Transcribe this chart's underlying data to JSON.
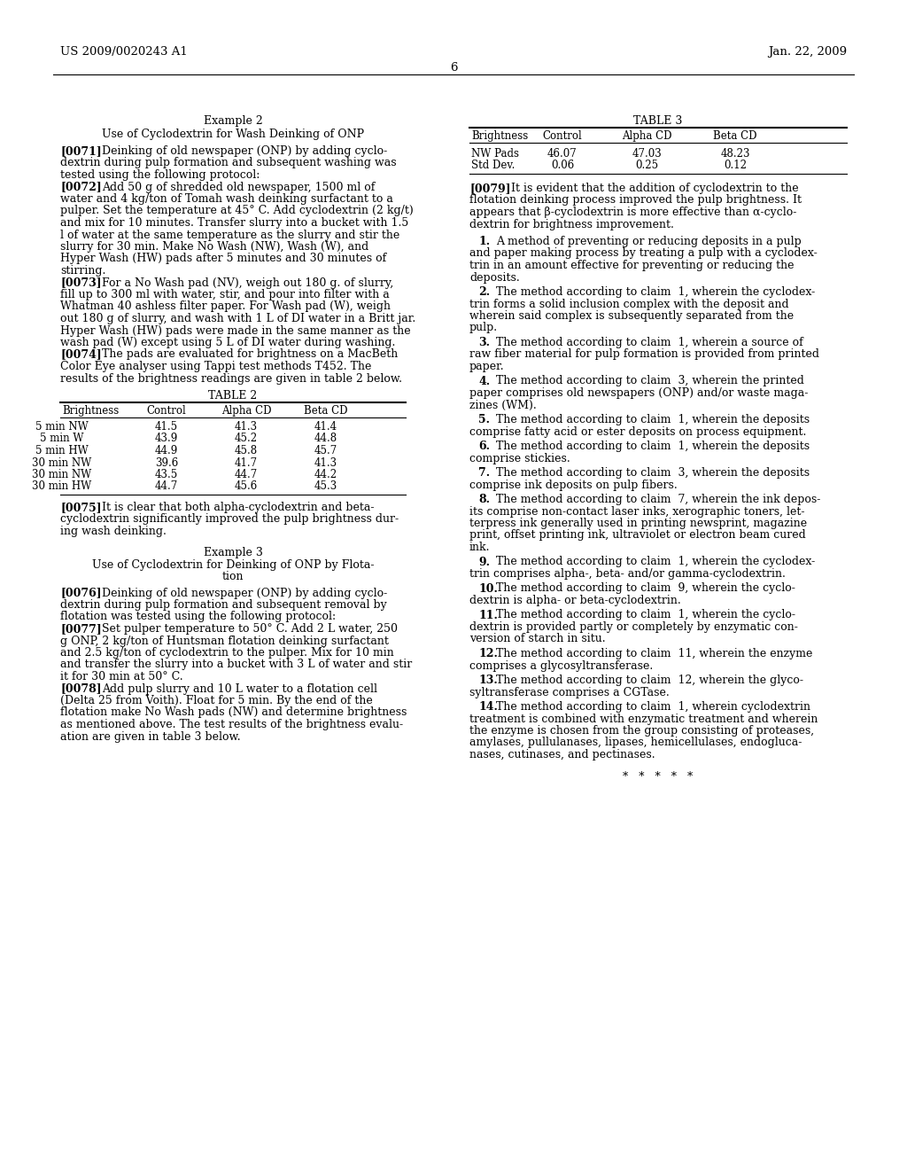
{
  "background_color": "#ffffff",
  "header_left": "US 2009/0020243 A1",
  "header_right": "Jan. 22, 2009",
  "page_number": "6",
  "table2": {
    "headers": [
      "Brightness",
      "Control",
      "Alpha CD",
      "Beta CD"
    ],
    "rows": [
      [
        "5 min NW",
        "41.5",
        "41.3",
        "41.4"
      ],
      [
        "5 min W",
        "43.9",
        "45.2",
        "44.8"
      ],
      [
        "5 min HW",
        "44.9",
        "45.8",
        "45.7"
      ],
      [
        "30 min NW",
        "39.6",
        "41.7",
        "41.3"
      ],
      [
        "30 min NW",
        "43.5",
        "44.7",
        "44.2"
      ],
      [
        "30 min HW",
        "44.7",
        "45.6",
        "45.3"
      ]
    ]
  },
  "table3": {
    "headers": [
      "Brightness",
      "Control",
      "Alpha CD",
      "Beta CD"
    ],
    "rows": [
      [
        "NW Pads",
        "46.07",
        "47.03",
        "48.23"
      ],
      [
        "Std Dev.",
        "0.06",
        "0.25",
        "0.12"
      ]
    ]
  }
}
